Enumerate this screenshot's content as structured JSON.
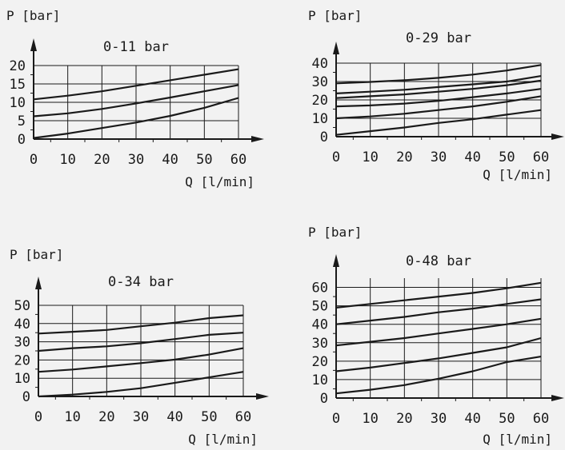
{
  "chart_data": [
    {
      "type": "line",
      "title": "0-11 bar",
      "ylabel": "P [bar]",
      "xlabel": "Q [l/min]",
      "xlim": [
        0,
        60
      ],
      "ylim": [
        0,
        20
      ],
      "xticks": [
        0,
        10,
        20,
        30,
        40,
        50,
        60
      ],
      "yticks": [
        0,
        5,
        10,
        15,
        20
      ],
      "grid": true,
      "series": [
        {
          "x": [
            0,
            10,
            20,
            30,
            40,
            50,
            60
          ],
          "y": [
            0.3,
            1.5,
            3.0,
            4.5,
            6.3,
            8.5,
            11.2
          ]
        },
        {
          "x": [
            0,
            10,
            20,
            30,
            40,
            50,
            60
          ],
          "y": [
            6.2,
            7.0,
            8.2,
            9.7,
            11.3,
            13.0,
            14.7
          ]
        },
        {
          "x": [
            0,
            10,
            20,
            30,
            40,
            50,
            60
          ],
          "y": [
            10.8,
            11.8,
            13.0,
            14.5,
            16.0,
            17.5,
            19.0
          ]
        }
      ]
    },
    {
      "type": "line",
      "title": "0-29 bar",
      "ylabel": "P [bar]",
      "xlabel": "Q [l/min]",
      "xlim": [
        0,
        60
      ],
      "ylim": [
        0,
        40
      ],
      "xticks": [
        0,
        10,
        20,
        30,
        40,
        50,
        60
      ],
      "yticks": [
        0,
        10,
        20,
        30,
        40
      ],
      "grid": true,
      "series": [
        {
          "x": [
            0,
            10,
            20,
            30,
            40,
            50,
            60
          ],
          "y": [
            1,
            3,
            5,
            7.5,
            9.5,
            12,
            14.5
          ]
        },
        {
          "x": [
            0,
            10,
            20,
            30,
            40,
            50,
            60
          ],
          "y": [
            10,
            11,
            12.5,
            14.5,
            16.5,
            19,
            22
          ]
        },
        {
          "x": [
            0,
            10,
            20,
            30,
            40,
            50,
            60
          ],
          "y": [
            16.5,
            17,
            18,
            19.5,
            21.5,
            23.5,
            26
          ]
        },
        {
          "x": [
            0,
            10,
            20,
            30,
            40,
            50,
            60
          ],
          "y": [
            21,
            22,
            23,
            24.5,
            26,
            28,
            30.5
          ]
        },
        {
          "x": [
            0,
            10,
            20,
            30,
            40,
            50,
            60
          ],
          "y": [
            23.5,
            24.5,
            25.5,
            27,
            28.5,
            30,
            33
          ]
        },
        {
          "x": [
            0,
            10,
            20,
            30,
            40,
            50,
            60
          ],
          "y": [
            29,
            29.8,
            30.7,
            32,
            33.8,
            36,
            39
          ]
        }
      ]
    },
    {
      "type": "line",
      "title": "0-34 bar",
      "ylabel": "P [bar]",
      "xlabel": "Q [l/min]",
      "xlim": [
        0,
        60
      ],
      "ylim": [
        0,
        50
      ],
      "xticks": [
        0,
        10,
        20,
        30,
        40,
        50,
        60
      ],
      "yticks": [
        0,
        10,
        20,
        30,
        40,
        50
      ],
      "grid": true,
      "series": [
        {
          "x": [
            0,
            10,
            20,
            30,
            40,
            50,
            60
          ],
          "y": [
            0,
            1,
            2.5,
            4.5,
            7.5,
            10.5,
            13.5
          ]
        },
        {
          "x": [
            0,
            10,
            20,
            30,
            40,
            50,
            60
          ],
          "y": [
            13.5,
            14.8,
            16.5,
            18.3,
            20.2,
            23,
            26.5
          ]
        },
        {
          "x": [
            0,
            10,
            20,
            30,
            40,
            50,
            60
          ],
          "y": [
            25,
            26.5,
            27.5,
            29.2,
            31.5,
            33.8,
            35
          ]
        },
        {
          "x": [
            0,
            10,
            20,
            30,
            40,
            50,
            60
          ],
          "y": [
            34.5,
            35.5,
            36.5,
            38.5,
            40.5,
            43,
            44.5
          ]
        }
      ]
    },
    {
      "type": "line",
      "title": "0-48 bar",
      "ylabel": "P [bar]",
      "xlabel": "Q [l/min]",
      "xlim": [
        0,
        60
      ],
      "ylim": [
        0,
        65
      ],
      "xticks": [
        0,
        10,
        20,
        30,
        40,
        50,
        60
      ],
      "yticks": [
        0,
        10,
        20,
        30,
        40,
        50,
        60
      ],
      "grid": true,
      "series": [
        {
          "x": [
            0,
            10,
            20,
            30,
            40,
            50,
            60
          ],
          "y": [
            2.5,
            4.5,
            7,
            10.5,
            14.5,
            19.5,
            22.5
          ]
        },
        {
          "x": [
            0,
            10,
            20,
            30,
            40,
            50,
            60
          ],
          "y": [
            14.5,
            16.5,
            19,
            21.5,
            24.5,
            27.5,
            32.5
          ]
        },
        {
          "x": [
            0,
            10,
            20,
            30,
            40,
            50,
            60
          ],
          "y": [
            28.5,
            30.5,
            32.5,
            35,
            37.5,
            40,
            43
          ]
        },
        {
          "x": [
            0,
            10,
            20,
            30,
            40,
            50,
            60
          ],
          "y": [
            40,
            42,
            44,
            46.5,
            48.5,
            51,
            53.5
          ]
        },
        {
          "x": [
            0,
            10,
            20,
            30,
            40,
            50,
            60
          ],
          "y": [
            49,
            51,
            53,
            55,
            57,
            59.5,
            62.5
          ]
        }
      ]
    }
  ]
}
